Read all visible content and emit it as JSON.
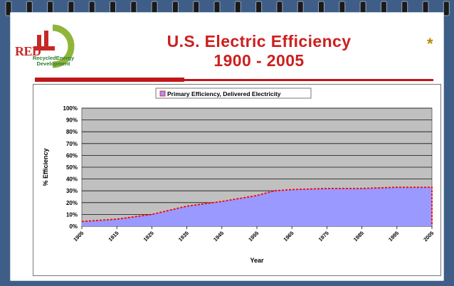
{
  "slide": {
    "title_line1": "U.S. Electric Efficiency",
    "title_line2": "1900 - 2005",
    "asterisk": "*"
  },
  "logo": {
    "abbrev": "RED",
    "line1": "RecycledEnergy",
    "line2": "Development"
  },
  "colors": {
    "background": "#3f5e87",
    "title": "#cc1f1f",
    "accent_rule": "#c0171a",
    "plot_bg": "#c0c0c0",
    "area_fill": "#9999ff",
    "area_edge": "#ff0000"
  },
  "chart_data": {
    "type": "area",
    "legend": "Primary Efficiency, Delivered Electricity",
    "xlabel": "Year",
    "ylabel": "% Efficiency",
    "x_ticks": [
      "1905",
      "1915",
      "1925",
      "1935",
      "1945",
      "1955",
      "1965",
      "1975",
      "1985",
      "1995",
      "2005"
    ],
    "y_ticks": [
      "0%",
      "10%",
      "20%",
      "30%",
      "40%",
      "50%",
      "60%",
      "70%",
      "80%",
      "90%",
      "100%"
    ],
    "ylim": [
      0,
      100
    ],
    "xlim": [
      1905,
      2005
    ],
    "x": [
      1905,
      1915,
      1925,
      1935,
      1945,
      1955,
      1960,
      1965,
      1975,
      1985,
      1995,
      2005
    ],
    "values": [
      4,
      6,
      10,
      17,
      21,
      26,
      30,
      31,
      32,
      32,
      33,
      33
    ],
    "grid": true,
    "legend_position": "top-center"
  }
}
